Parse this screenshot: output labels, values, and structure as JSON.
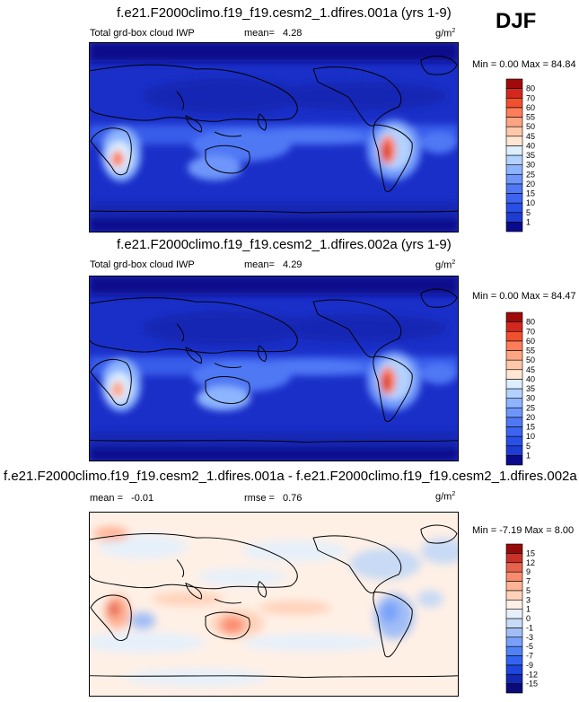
{
  "season": "DJF",
  "chart_data": [
    {
      "type": "heatmap",
      "title": "f.e21.F2000climo.f19_f19.cesm2_1.dfires.001a (yrs 1-9)",
      "variable": "Total grd-box cloud IWP",
      "mean_label": "mean=",
      "mean": "4.28",
      "units": "g/m",
      "units_sup": "2",
      "min_max": "Min =  0.00 Max =  84.84",
      "colorbar_levels": [
        "1",
        "5",
        "10",
        "15",
        "20",
        "25",
        "30",
        "35",
        "40",
        "45",
        "50",
        "55",
        "60",
        "70",
        "80"
      ],
      "colors": [
        "#0a0a8c",
        "#1e3cd2",
        "#2850e6",
        "#3c64f0",
        "#5078f5",
        "#6e96fa",
        "#8cb4ff",
        "#b4d2ff",
        "#dceeff",
        "#ffe6d2",
        "#ffc8aa",
        "#ffa582",
        "#ff7d5a",
        "#f0502d",
        "#d2281e",
        "#a00a0a"
      ]
    },
    {
      "type": "heatmap",
      "title": "f.e21.F2000climo.f19_f19.cesm2_1.dfires.002a (yrs 1-9)",
      "variable": "Total grd-box cloud IWP",
      "mean_label": "mean=",
      "mean": "4.29",
      "units": "g/m",
      "units_sup": "2",
      "min_max": "Min =  0.00 Max =  84.47",
      "colorbar_levels": [
        "1",
        "5",
        "10",
        "15",
        "20",
        "25",
        "30",
        "35",
        "40",
        "45",
        "50",
        "55",
        "60",
        "70",
        "80"
      ],
      "colors": [
        "#0a0a8c",
        "#1e3cd2",
        "#2850e6",
        "#3c64f0",
        "#5078f5",
        "#6e96fa",
        "#8cb4ff",
        "#b4d2ff",
        "#dceeff",
        "#ffe6d2",
        "#ffc8aa",
        "#ffa582",
        "#ff7d5a",
        "#f0502d",
        "#d2281e",
        "#a00a0a"
      ]
    },
    {
      "type": "heatmap",
      "title": "f.e21.F2000climo.f19_f19.cesm2_1.dfires.001a - f.e21.F2000climo.f19_f19.cesm2_1.dfires.002a",
      "mean_label": "mean =",
      "mean": "-0.01",
      "rmse_label": "rmse =",
      "rmse": "0.76",
      "units": "g/m",
      "units_sup": "2",
      "min_max": "Min = -7.19 Max =  8.00",
      "colorbar_levels": [
        "-15",
        "-12",
        "-9",
        "-7",
        "-5",
        "-3",
        "-1",
        "0",
        "1",
        "3",
        "5",
        "7",
        "9",
        "12",
        "15"
      ],
      "colors": [
        "#0a0a78",
        "#1428b4",
        "#1e46dc",
        "#3264f0",
        "#5082f5",
        "#78a0fa",
        "#a0bef5",
        "#c8daf5",
        "#e6f0fa",
        "#fff0e6",
        "#ffd2b9",
        "#ffb496",
        "#fa8c6e",
        "#e6644b",
        "#c83228",
        "#960a0a"
      ]
    }
  ]
}
